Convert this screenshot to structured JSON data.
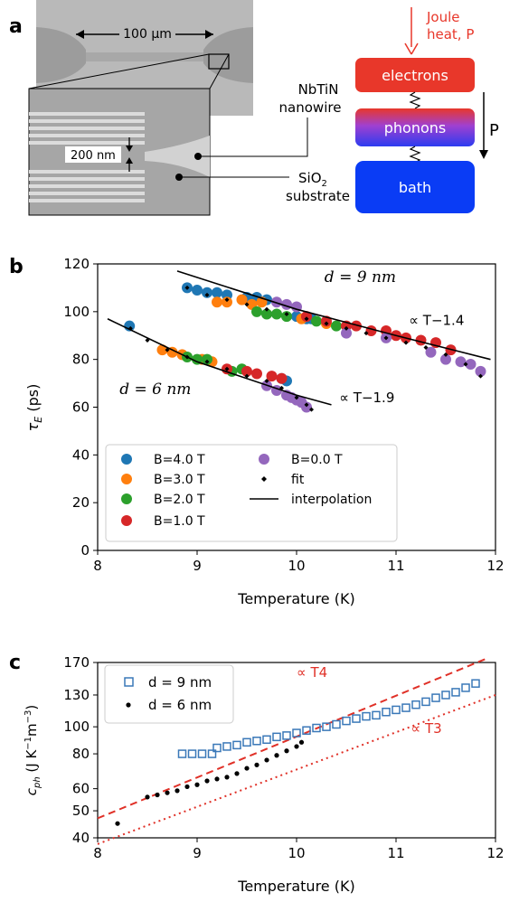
{
  "colors": {
    "B4": "#1f77b4",
    "B3": "#ff7f0e",
    "B2": "#2ca02c",
    "B1": "#d62728",
    "B0": "#9467bd",
    "electrons": "#e8372a",
    "phonons_top": "#e8372a",
    "phonons_bottom": "#2d3cf0",
    "bath": "#0a3cf5",
    "joule": "#e8372a",
    "fitline": "#000000",
    "t4": "#e03027",
    "d9": "#3a78b8",
    "d6": "#000000"
  },
  "panel_a": {
    "label": "a",
    "scale_top": "100 μm",
    "scale_inset": "200 nm",
    "nanowire_label_1": "NbTiN",
    "nanowire_label_2": "nanowire",
    "substrate_label_1": "SiO",
    "substrate_label_sub": "2",
    "substrate_label_2": "substrate",
    "joule_1": "Joule",
    "joule_2": "heat, P",
    "electrons": "electrons",
    "phonons": "phonons",
    "bath": "bath",
    "P": "P"
  },
  "panel_b": {
    "label": "b"
  },
  "panel_c": {
    "label": "c"
  },
  "chart_data": [
    {
      "type": "scatter",
      "xlabel": "Temperature (K)",
      "ylabel": "τE (ps)",
      "xlim": [
        8,
        12
      ],
      "ylim": [
        0,
        120
      ],
      "xticks": [
        "8",
        "9",
        "10",
        "11",
        "12"
      ],
      "yticks": [
        "0",
        "20",
        "40",
        "60",
        "80",
        "100",
        "120"
      ],
      "grid": false,
      "legend_position": "lower-left",
      "legend": [
        {
          "label": "B=4.0 T",
          "kind": "dot",
          "color_key": "B4"
        },
        {
          "label": "B=3.0 T",
          "kind": "dot",
          "color_key": "B3"
        },
        {
          "label": "B=2.0 T",
          "kind": "dot",
          "color_key": "B2"
        },
        {
          "label": "B=1.0 T",
          "kind": "dot",
          "color_key": "B1"
        },
        {
          "label": "B=0.0 T",
          "kind": "dot",
          "color_key": "B0"
        },
        {
          "label": "fit",
          "kind": "diamond",
          "color_key": "fitline"
        },
        {
          "label": "interpolation",
          "kind": "line",
          "color_key": "fitline"
        }
      ],
      "annotations": {
        "d9": "d = 9 nm",
        "d6": "d = 6 nm",
        "p9": "∝ T−1.4",
        "p6": "∝ T−1.9"
      },
      "series": [
        {
          "name": "d = 9 nm, B=4.0 T",
          "color_key": "B4",
          "x": [
            8.9,
            9.0,
            9.1,
            9.2,
            9.3,
            9.5,
            9.6,
            9.7,
            10.0,
            10.1,
            10.15
          ],
          "y": [
            110,
            109,
            108,
            108,
            107,
            106,
            106,
            105,
            98,
            97,
            97
          ]
        },
        {
          "name": "d = 9 nm, B=3.0 T",
          "color_key": "B3",
          "x": [
            9.2,
            9.3,
            9.45,
            9.55,
            9.65,
            10.05,
            10.3
          ],
          "y": [
            104,
            104,
            105,
            103,
            104,
            97,
            95
          ]
        },
        {
          "name": "d = 9 nm, B=2.0 T",
          "color_key": "B2",
          "x": [
            9.6,
            9.7,
            9.8,
            9.9,
            10.2,
            10.4
          ],
          "y": [
            100,
            99,
            99,
            98,
            96,
            94
          ]
        },
        {
          "name": "d = 9 nm, B=1.0 T",
          "color_key": "B1",
          "x": [
            10.1,
            10.3,
            10.5,
            10.6,
            10.75,
            10.9,
            11.0,
            11.1,
            11.25,
            11.4,
            11.55
          ],
          "y": [
            98,
            96,
            94,
            94,
            92,
            92,
            90,
            89,
            88,
            87,
            84
          ]
        },
        {
          "name": "d = 9 nm, B=0.0 T",
          "color_key": "B0",
          "x": [
            9.8,
            9.9,
            10.0,
            10.5,
            10.9,
            11.35,
            11.5,
            11.65,
            11.75,
            11.85
          ],
          "y": [
            104,
            103,
            102,
            91,
            89,
            83,
            80,
            79,
            78,
            75
          ]
        },
        {
          "name": "d = 6 nm, B=4.0 T",
          "color_key": "B4",
          "x": [
            8.32,
            9.85,
            9.9
          ],
          "y": [
            94,
            72,
            71
          ]
        },
        {
          "name": "d = 6 nm, B=3.0 T",
          "color_key": "B3",
          "x": [
            8.65,
            8.75,
            8.85,
            9.05,
            9.15
          ],
          "y": [
            84,
            83,
            82,
            80,
            79
          ]
        },
        {
          "name": "d = 6 nm, B=2.0 T",
          "color_key": "B2",
          "x": [
            8.9,
            9.0,
            9.1,
            9.35,
            9.45
          ],
          "y": [
            81,
            80,
            80,
            75,
            76
          ]
        },
        {
          "name": "d = 6 nm, B=1.0 T",
          "color_key": "B1",
          "x": [
            9.3,
            9.5,
            9.6,
            9.75,
            9.85
          ],
          "y": [
            76,
            75,
            74,
            73,
            72
          ]
        },
        {
          "name": "d = 6 nm, B=0.0 T",
          "color_key": "B0",
          "x": [
            9.7,
            9.8,
            9.9,
            9.95,
            10.0,
            10.05,
            10.1
          ],
          "y": [
            69,
            67,
            65,
            64,
            63,
            62,
            60
          ]
        }
      ],
      "fit_points": {
        "d9": {
          "x": [
            8.9,
            9.1,
            9.3,
            9.5,
            9.7,
            9.9,
            10.1,
            10.3,
            10.5,
            10.7,
            10.9,
            11.1,
            11.3,
            11.5,
            11.7,
            11.85
          ],
          "y": [
            110,
            107,
            105,
            103,
            101,
            99,
            97,
            95,
            93,
            91,
            89,
            87,
            85,
            82,
            78,
            73
          ]
        },
        "d6": {
          "x": [
            8.33,
            8.5,
            8.7,
            8.9,
            9.1,
            9.3,
            9.5,
            9.7,
            9.85,
            10.0,
            10.1,
            10.15
          ],
          "y": [
            93,
            88,
            84,
            81,
            79,
            76,
            73,
            71,
            68,
            64,
            61,
            59
          ]
        }
      },
      "interpolation": {
        "d9": {
          "x": [
            8.8,
            10.0,
            11.0,
            11.95
          ],
          "y": [
            117,
            101,
            90,
            80
          ]
        },
        "d6": {
          "x": [
            8.1,
            9.0,
            10.0,
            10.35
          ],
          "y": [
            97,
            79,
            65,
            61
          ]
        }
      }
    },
    {
      "type": "scatter",
      "xlabel": "Temperature (K)",
      "ylabel": "cph (J K−1m−3)",
      "xlim": [
        8,
        12
      ],
      "ylim": [
        40,
        170
      ],
      "yscale": "log",
      "xticks": [
        "8",
        "9",
        "10",
        "11",
        "12"
      ],
      "yticks": [
        "40",
        "50",
        "60",
        "80",
        "100",
        "130",
        "170"
      ],
      "legend_position": "top-left",
      "legend": [
        {
          "label": "d = 9 nm",
          "kind": "square",
          "color_key": "d9"
        },
        {
          "label": "d = 6 nm",
          "kind": "dot",
          "color_key": "d6"
        }
      ],
      "annotations": {
        "t4": "∝ T4",
        "t3": "∝ T3"
      },
      "series": [
        {
          "name": "d = 9 nm",
          "color_key": "d9",
          "x": [
            8.85,
            8.95,
            9.05,
            9.15,
            9.2,
            9.3,
            9.4,
            9.5,
            9.6,
            9.7,
            9.8,
            9.9,
            10.0,
            10.1,
            10.2,
            10.3,
            10.4,
            10.5,
            10.6,
            10.7,
            10.8,
            10.9,
            11.0,
            11.1,
            11.2,
            11.3,
            11.4,
            11.5,
            11.6,
            11.7,
            11.8
          ],
          "y": [
            80,
            80,
            80,
            80,
            84,
            85,
            86,
            88,
            89,
            90,
            92,
            93,
            95,
            97,
            99,
            100,
            102,
            105,
            107,
            109,
            110,
            113,
            115,
            117,
            120,
            123,
            127,
            130,
            133,
            138,
            143
          ]
        },
        {
          "name": "d = 6 nm",
          "color_key": "d6",
          "x": [
            8.2,
            8.5,
            8.6,
            8.7,
            8.8,
            8.9,
            9.0,
            9.1,
            9.2,
            9.3,
            9.4,
            9.5,
            9.6,
            9.7,
            9.8,
            9.9,
            10.0,
            10.05
          ],
          "y": [
            45,
            56,
            57,
            58,
            59,
            61,
            62,
            64,
            65,
            66,
            68,
            71,
            73,
            76,
            79,
            82,
            85,
            88
          ]
        }
      ],
      "guide_lines": {
        "t4": {
          "x": [
            8.0,
            11.9
          ],
          "y": [
            47,
            175
          ]
        },
        "t3": {
          "x": [
            8.0,
            12.0
          ],
          "y": [
            38,
            130
          ]
        }
      }
    }
  ]
}
